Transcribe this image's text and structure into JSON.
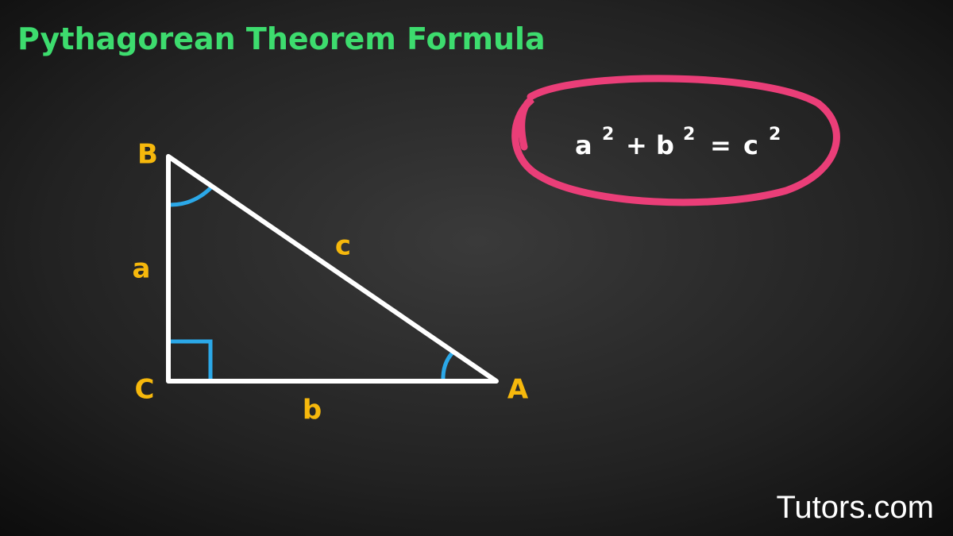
{
  "header": {
    "title": "Pythagorean Theorem Formula"
  },
  "triangle": {
    "vertices": {
      "A": "A",
      "B": "B",
      "C": "C"
    },
    "sides": {
      "a": "a",
      "b": "b",
      "c": "c"
    }
  },
  "formula": {
    "parts": [
      {
        "base": "a",
        "exponent": "2"
      },
      {
        "operator": "+"
      },
      {
        "base": "b",
        "exponent": "2"
      },
      {
        "operator": "="
      },
      {
        "base": "c",
        "exponent": "2"
      }
    ]
  },
  "brand": "Tutors.com"
}
